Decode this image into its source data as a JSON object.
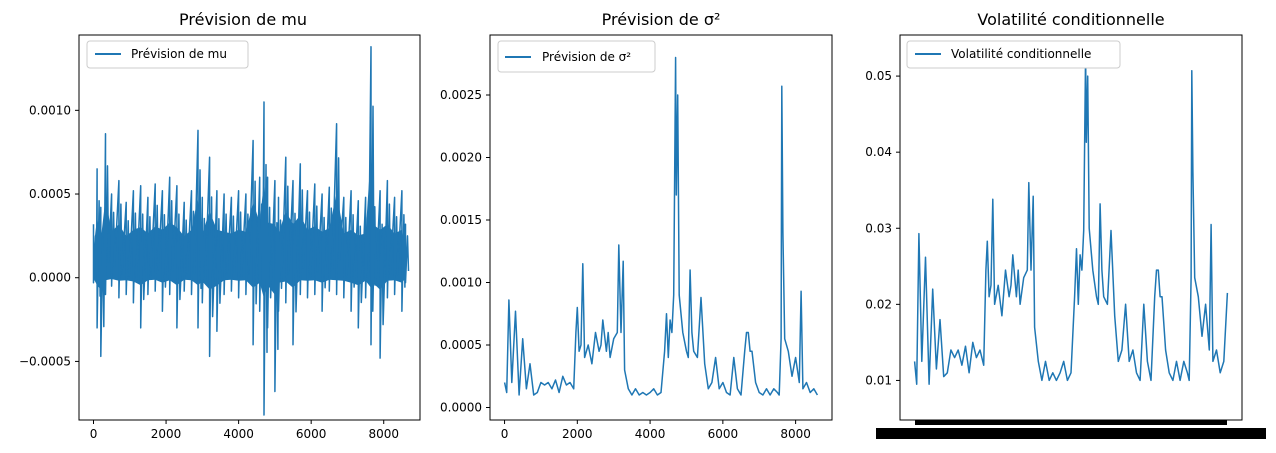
{
  "chart_data": [
    {
      "type": "line",
      "title": "Prévision de mu",
      "legend": {
        "label": "Prévision de mu",
        "position": "upper-left"
      },
      "xlim": [
        -400,
        9000
      ],
      "ylim": [
        -0.00085,
        0.00145
      ],
      "xticks": [
        0,
        2000,
        4000,
        6000,
        8000
      ],
      "xtick_labels": [
        "0",
        "2000",
        "4000",
        "6000",
        "8000"
      ],
      "yticks": [
        -0.0005,
        0.0,
        0.0005,
        0.001
      ],
      "ytick_labels": [
        "−0.0005",
        "0.0000",
        "0.0005",
        "0.0010"
      ],
      "color": "#1f77b4",
      "series": [
        {
          "name": "Prévision de mu",
          "x": [
            0,
            100,
            200,
            330,
            500,
            700,
            900,
            1100,
            1300,
            1500,
            1700,
            1900,
            2100,
            2300,
            2500,
            2700,
            2880,
            3000,
            3200,
            3400,
            3600,
            3800,
            4000,
            4200,
            4400,
            4580,
            4700,
            4800,
            5000,
            5100,
            5300,
            5500,
            5700,
            5900,
            6100,
            6300,
            6500,
            6700,
            6900,
            7100,
            7300,
            7500,
            7650,
            7700,
            7900,
            8100,
            8300,
            8500,
            8600
          ],
          "high": [
            0.00032,
            0.00065,
            0.00042,
            0.00086,
            0.0005,
            0.00058,
            0.00045,
            0.00052,
            0.00055,
            0.00048,
            0.00056,
            0.00052,
            0.0006,
            0.00055,
            0.00045,
            0.00052,
            0.00088,
            0.00048,
            0.00072,
            0.00052,
            0.0005,
            0.00048,
            0.00052,
            0.0005,
            0.00082,
            0.0006,
            0.00105,
            0.0006,
            0.00058,
            0.00048,
            0.00072,
            0.00058,
            0.00068,
            0.00052,
            0.00056,
            0.0005,
            0.00054,
            0.00092,
            0.00048,
            0.00052,
            0.00046,
            0.00048,
            0.00138,
            0.00058,
            0.00052,
            0.00058,
            0.00048,
            0.00052,
            0.00032
          ],
          "low": [
            -3e-05,
            -0.0003,
            -0.00047,
            -0.0001,
            -5e-05,
            -0.00012,
            -0.0001,
            -0.00015,
            -0.0003,
            -0.0001,
            -8e-05,
            -0.0002,
            -0.0001,
            -0.0003,
            -8e-05,
            -0.0001,
            -0.0003,
            -0.00015,
            -0.00047,
            -0.00032,
            -0.0001,
            -8e-05,
            -0.00012,
            -0.0001,
            -0.0004,
            -0.0002,
            -0.00082,
            -0.0003,
            -0.00068,
            -0.0002,
            -0.00015,
            -0.0004,
            -0.0001,
            -0.00012,
            -0.0001,
            -0.0002,
            -8e-05,
            -0.0001,
            -0.00012,
            -0.0002,
            -0.0003,
            -0.00012,
            -0.0004,
            -0.0002,
            -0.00048,
            -0.00012,
            -0.0001,
            -0.0002,
            -3e-05
          ]
        }
      ]
    },
    {
      "type": "line",
      "title": "Prévision de σ²",
      "legend": {
        "label": "Prévision de σ²",
        "position": "upper-left"
      },
      "xlim": [
        -400,
        9000
      ],
      "ylim": [
        -0.0001,
        0.00298
      ],
      "xticks": [
        0,
        2000,
        4000,
        6000,
        8000
      ],
      "xtick_labels": [
        "0",
        "2000",
        "4000",
        "6000",
        "8000"
      ],
      "yticks": [
        0.0,
        0.0005,
        0.001,
        0.0015,
        0.002,
        0.0025
      ],
      "ytick_labels": [
        "0.0000",
        "0.0005",
        "0.0010",
        "0.0015",
        "0.0020",
        "0.0025"
      ],
      "color": "#1f77b4",
      "series": [
        {
          "name": "Prévision de σ²",
          "x": [
            0,
            60,
            120,
            200,
            300,
            400,
            500,
            600,
            700,
            800,
            900,
            1000,
            1100,
            1200,
            1300,
            1400,
            1500,
            1600,
            1700,
            1800,
            1900,
            1960,
            2000,
            2050,
            2100,
            2150,
            2200,
            2300,
            2400,
            2500,
            2600,
            2650,
            2700,
            2800,
            2850,
            2900,
            3000,
            3100,
            3140,
            3200,
            3260,
            3300,
            3400,
            3500,
            3600,
            3700,
            3800,
            3900,
            4000,
            4100,
            4200,
            4300,
            4400,
            4450,
            4500,
            4550,
            4600,
            4650,
            4700,
            4720,
            4760,
            4800,
            4900,
            5000,
            5050,
            5100,
            5150,
            5200,
            5300,
            5400,
            5500,
            5600,
            5700,
            5800,
            5900,
            6000,
            6100,
            6200,
            6300,
            6400,
            6500,
            6600,
            6650,
            6700,
            6750,
            6800,
            6900,
            7000,
            7100,
            7200,
            7300,
            7400,
            7500,
            7550,
            7600,
            7620,
            7650,
            7700,
            7800,
            7900,
            8000,
            8100,
            8150,
            8200,
            8300,
            8400,
            8500,
            8600
          ],
          "y": [
            0.0002,
            0.00012,
            0.00086,
            0.0002,
            0.00077,
            0.0001,
            0.00055,
            0.00015,
            0.00035,
            0.0001,
            0.00012,
            0.0002,
            0.00018,
            0.0002,
            0.00015,
            0.00022,
            0.00012,
            0.00025,
            0.00018,
            0.0002,
            0.00015,
            0.0006,
            0.0008,
            0.00045,
            0.0005,
            0.00115,
            0.0004,
            0.0005,
            0.00035,
            0.0006,
            0.00045,
            0.0005,
            0.0007,
            0.00045,
            0.0006,
            0.0004,
            0.00055,
            0.0006,
            0.0013,
            0.0006,
            0.00117,
            0.0003,
            0.00015,
            0.0001,
            0.00015,
            0.0001,
            0.00012,
            0.0001,
            0.00012,
            0.00015,
            0.0001,
            0.00012,
            0.00045,
            0.00075,
            0.0004,
            0.0007,
            0.0006,
            0.0009,
            0.0028,
            0.0017,
            0.0025,
            0.0009,
            0.0006,
            0.00045,
            0.0004,
            0.0011,
            0.0006,
            0.00045,
            0.0004,
            0.00088,
            0.00035,
            0.00015,
            0.0002,
            0.0004,
            0.00015,
            0.0002,
            0.00012,
            0.0001,
            0.0004,
            0.00015,
            0.0001,
            0.00045,
            0.0006,
            0.0006,
            0.00045,
            0.00045,
            0.0002,
            0.00012,
            0.0001,
            0.00015,
            0.0001,
            0.00015,
            0.00012,
            0.0001,
            0.00055,
            0.00257,
            0.0014,
            0.00055,
            0.00045,
            0.00025,
            0.0004,
            0.0002,
            0.00093,
            0.00015,
            0.0002,
            0.00012,
            0.00015,
            0.0001
          ]
        }
      ]
    },
    {
      "type": "line",
      "title": "Volatilité conditionnelle",
      "legend": {
        "label": "Volatilité conditionnelle",
        "position": "upper-left"
      },
      "xlim": [
        -400,
        9000
      ],
      "ylim": [
        0.0048,
        0.0554
      ],
      "xtick_labels": [
        "dense overlapping date labels"
      ],
      "yticks": [
        0.01,
        0.02,
        0.03,
        0.04,
        0.05
      ],
      "ytick_labels": [
        "0.01",
        "0.02",
        "0.03",
        "0.04",
        "0.05"
      ],
      "color": "#1f77b4",
      "series": [
        {
          "name": "Volatilité conditionnelle",
          "x": [
            0,
            60,
            120,
            200,
            300,
            400,
            500,
            600,
            700,
            800,
            900,
            1000,
            1100,
            1200,
            1300,
            1400,
            1500,
            1600,
            1700,
            1800,
            1900,
            1960,
            2000,
            2050,
            2100,
            2150,
            2200,
            2300,
            2400,
            2500,
            2600,
            2650,
            2700,
            2800,
            2850,
            2900,
            3000,
            3100,
            3140,
            3200,
            3260,
            3300,
            3400,
            3500,
            3600,
            3700,
            3800,
            3900,
            4000,
            4100,
            4200,
            4300,
            4400,
            4450,
            4500,
            4550,
            4600,
            4650,
            4700,
            4720,
            4760,
            4800,
            4900,
            5000,
            5050,
            5100,
            5150,
            5200,
            5300,
            5400,
            5500,
            5600,
            5700,
            5800,
            5900,
            6000,
            6100,
            6200,
            6300,
            6400,
            6500,
            6600,
            6650,
            6700,
            6750,
            6800,
            6900,
            7000,
            7100,
            7200,
            7300,
            7400,
            7500,
            7550,
            7600,
            7620,
            7650,
            7700,
            7800,
            7900,
            8000,
            8100,
            8150,
            8200,
            8300,
            8400,
            8500,
            8600
          ],
          "y": [
            0.0125,
            0.0095,
            0.0293,
            0.0125,
            0.0262,
            0.0095,
            0.022,
            0.0115,
            0.018,
            0.0105,
            0.011,
            0.014,
            0.013,
            0.014,
            0.012,
            0.0145,
            0.011,
            0.015,
            0.013,
            0.014,
            0.012,
            0.0245,
            0.0283,
            0.021,
            0.0225,
            0.0338,
            0.02,
            0.0225,
            0.0185,
            0.0245,
            0.021,
            0.0225,
            0.0265,
            0.021,
            0.0245,
            0.02,
            0.0235,
            0.0245,
            0.036,
            0.0245,
            0.0342,
            0.017,
            0.0125,
            0.01,
            0.0125,
            0.01,
            0.011,
            0.01,
            0.011,
            0.0125,
            0.01,
            0.011,
            0.021,
            0.0273,
            0.02,
            0.0265,
            0.0245,
            0.0297,
            0.0531,
            0.0413,
            0.05,
            0.03,
            0.0245,
            0.021,
            0.02,
            0.0332,
            0.0245,
            0.021,
            0.02,
            0.0297,
            0.0185,
            0.0125,
            0.014,
            0.02,
            0.0125,
            0.014,
            0.011,
            0.01,
            0.02,
            0.0125,
            0.01,
            0.021,
            0.0245,
            0.0245,
            0.021,
            0.021,
            0.014,
            0.011,
            0.01,
            0.0125,
            0.01,
            0.0125,
            0.011,
            0.01,
            0.0235,
            0.0507,
            0.0374,
            0.0235,
            0.021,
            0.0158,
            0.02,
            0.014,
            0.0305,
            0.0125,
            0.014,
            0.011,
            0.0125,
            0.0215
          ]
        }
      ]
    }
  ]
}
